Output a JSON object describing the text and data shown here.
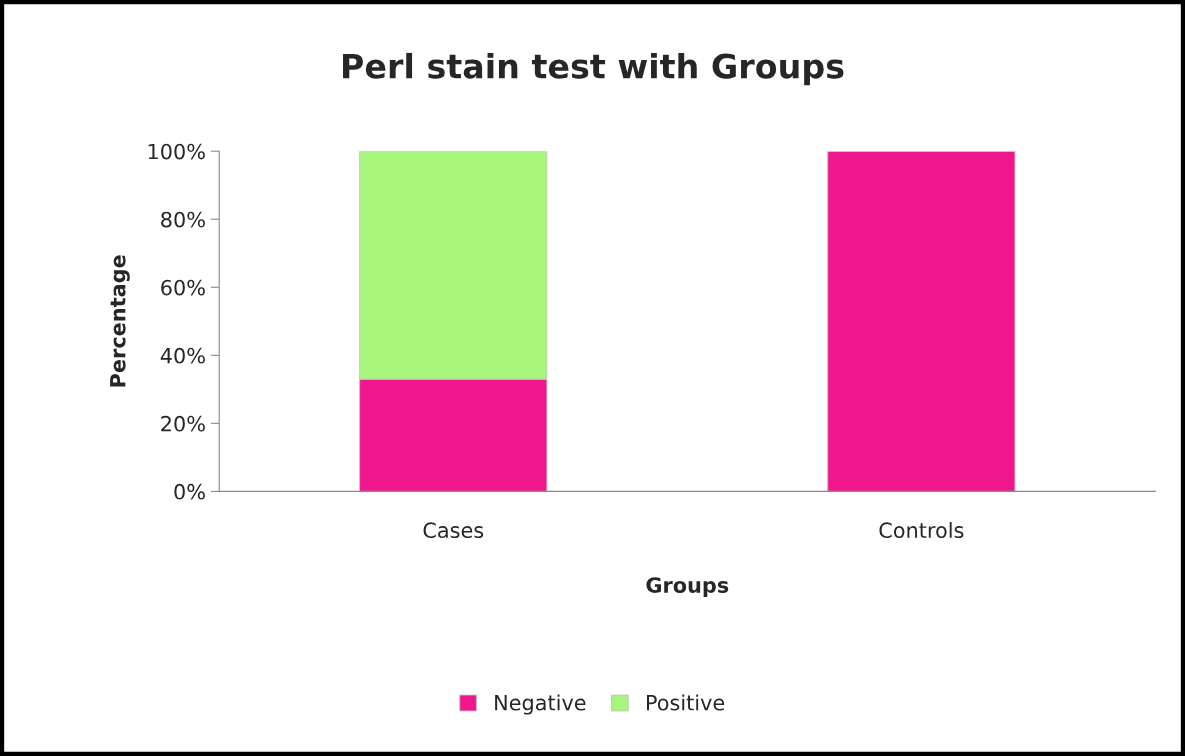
{
  "chart_data": {
    "type": "bar",
    "title": "Perl stain test with Groups",
    "xlabel": "Groups",
    "ylabel": "Percentage",
    "categories": [
      "Cases",
      "Controls"
    ],
    "series": [
      {
        "name": "Negative",
        "color": "#f0168c",
        "values": [
          33,
          100
        ]
      },
      {
        "name": "Positive",
        "color": "#a8f57c",
        "values": [
          67,
          0
        ]
      }
    ],
    "stacked": true,
    "ylim": [
      0,
      100
    ],
    "yticks": [
      {
        "value": 0,
        "label": "0%"
      },
      {
        "value": 20,
        "label": "20%"
      },
      {
        "value": 40,
        "label": "40%"
      },
      {
        "value": 60,
        "label": "60%"
      },
      {
        "value": 80,
        "label": "80%"
      },
      {
        "value": 100,
        "label": "100%"
      }
    ],
    "grid": false,
    "legend": "bottom"
  }
}
